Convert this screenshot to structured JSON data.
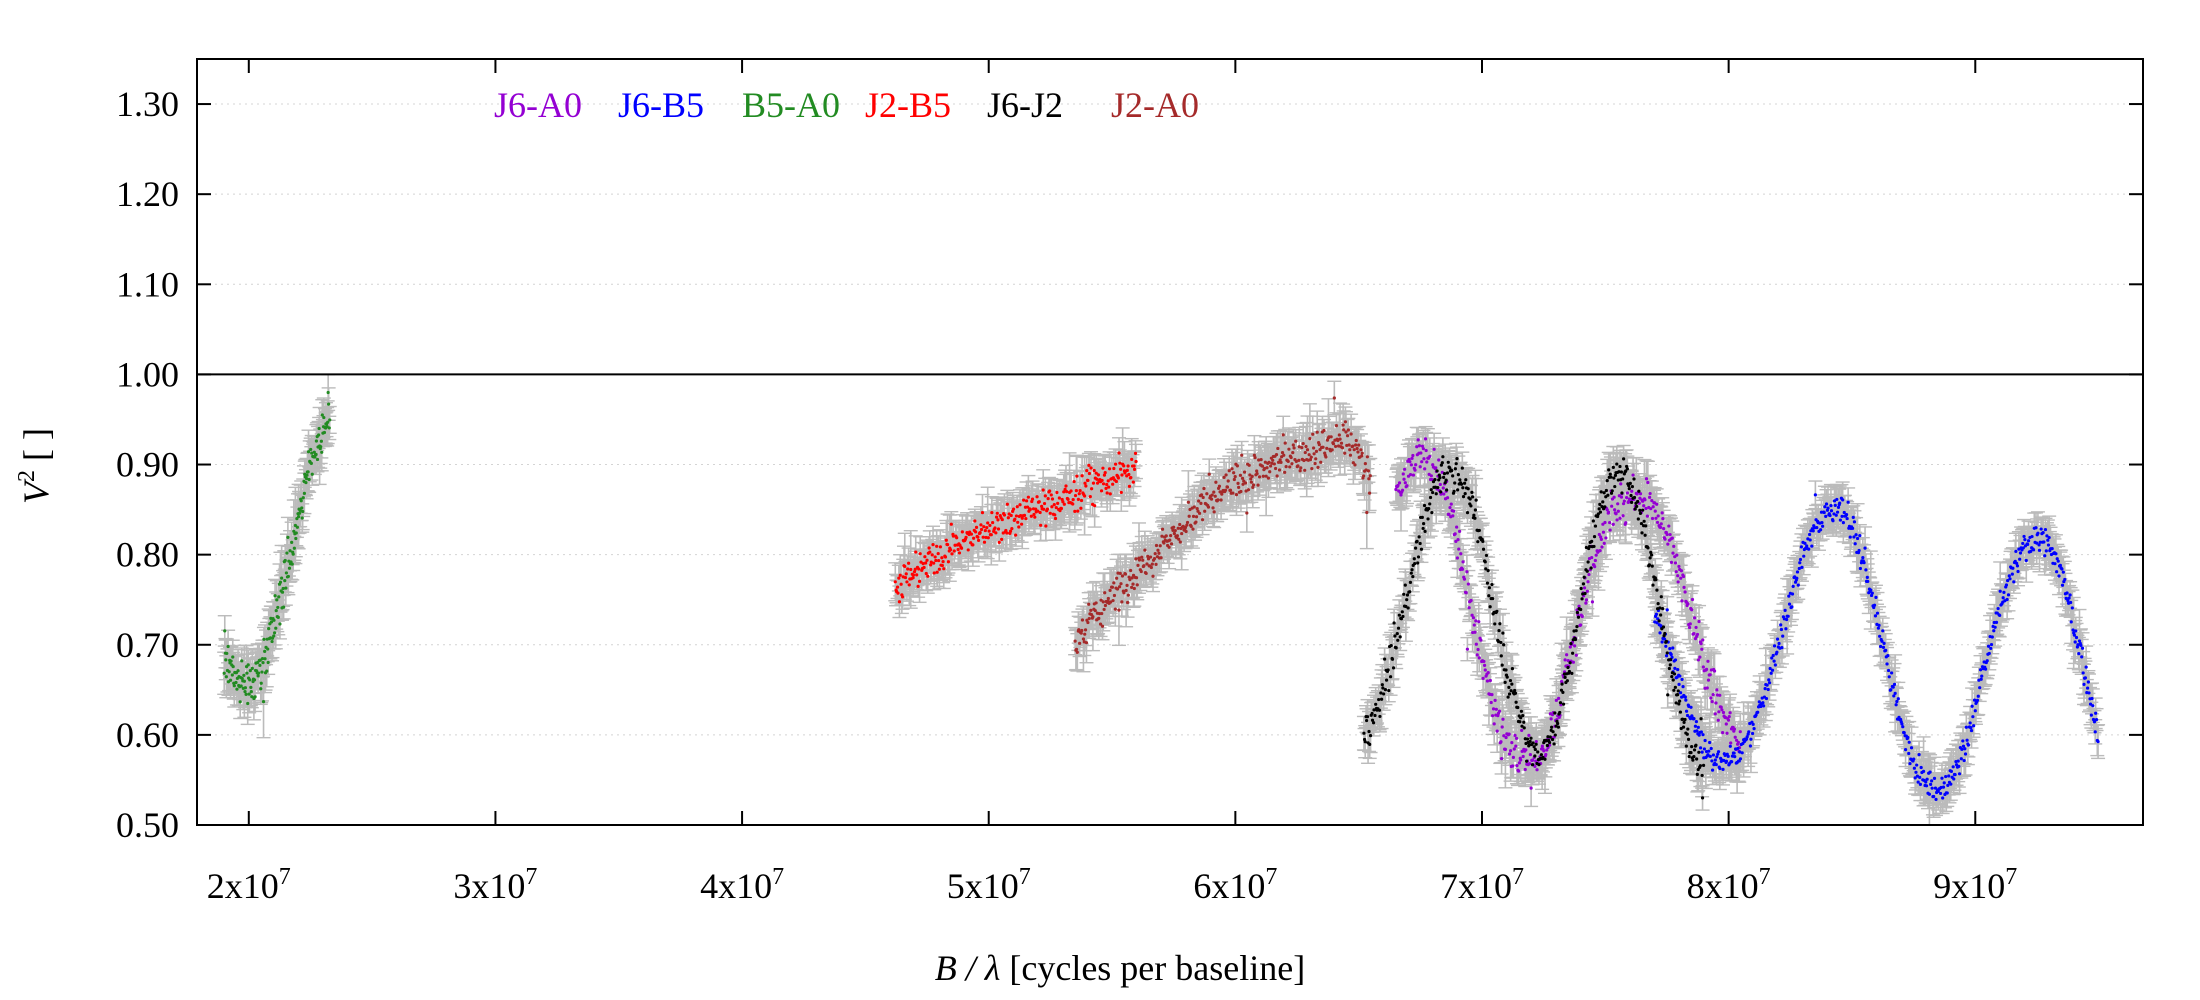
{
  "chart_data": {
    "type": "scatter",
    "title": "",
    "xlabel_main": "B / λ",
    "xlabel_unit": " [cycles per baseline]",
    "ylabel_main": "V",
    "ylabel_sup": "2",
    "ylabel_unit": " [ ]",
    "xlim": [
      17900000,
      96800000
    ],
    "ylim": [
      0.5,
      1.35
    ],
    "x_ticks": [
      {
        "value": 20000000,
        "mantissa": "2x10",
        "exp": "7"
      },
      {
        "value": 30000000,
        "mantissa": "3x10",
        "exp": "7"
      },
      {
        "value": 40000000,
        "mantissa": "4x10",
        "exp": "7"
      },
      {
        "value": 50000000,
        "mantissa": "5x10",
        "exp": "7"
      },
      {
        "value": 60000000,
        "mantissa": "6x10",
        "exp": "7"
      },
      {
        "value": 70000000,
        "mantissa": "7x10",
        "exp": "7"
      },
      {
        "value": 80000000,
        "mantissa": "8x10",
        "exp": "7"
      },
      {
        "value": 90000000,
        "mantissa": "9x10",
        "exp": "7"
      }
    ],
    "y_ticks": [
      {
        "value": 0.5,
        "label": "0.50"
      },
      {
        "value": 0.6,
        "label": "0.60"
      },
      {
        "value": 0.7,
        "label": "0.70"
      },
      {
        "value": 0.8,
        "label": "0.80"
      },
      {
        "value": 0.9,
        "label": "0.90"
      },
      {
        "value": 1.0,
        "label": "1.00"
      },
      {
        "value": 1.1,
        "label": "1.10"
      },
      {
        "value": 1.2,
        "label": "1.20"
      },
      {
        "value": 1.3,
        "label": "1.30"
      }
    ],
    "grid": true,
    "reference_line": {
      "y": 1.0
    },
    "legend_position": "top-left",
    "errorbar_color": "#bbbbbb",
    "series": [
      {
        "name": "J6-A0",
        "color": "#9400D3",
        "x": [
          66500000,
          67000000,
          67500000,
          68000000,
          68500000,
          69000000,
          69500000,
          70000000,
          70500000,
          71000000,
          71500000,
          72000000,
          72500000,
          73000000,
          73500000,
          74000000,
          74500000,
          75000000,
          75500000,
          76000000,
          76500000,
          77000000,
          77500000,
          78000000,
          78500000,
          79000000,
          79500000,
          80000000,
          80500000
        ],
        "y": [
          0.86,
          0.89,
          0.91,
          0.9,
          0.87,
          0.82,
          0.75,
          0.68,
          0.63,
          0.59,
          0.57,
          0.57,
          0.58,
          0.62,
          0.68,
          0.74,
          0.79,
          0.83,
          0.85,
          0.86,
          0.86,
          0.85,
          0.82,
          0.78,
          0.73,
          0.68,
          0.64,
          0.61,
          0.59
        ],
        "noise": 0.022
      },
      {
        "name": "J6-B5",
        "color": "#0000FF",
        "x": [
          77000000,
          77500000,
          78000000,
          78500000,
          79000000,
          79500000,
          80000000,
          80500000,
          81000000,
          81500000,
          82000000,
          82500000,
          83000000,
          83500000,
          84000000,
          84500000,
          85000000,
          85500000,
          86000000,
          86500000,
          87000000,
          87500000,
          88000000,
          88500000,
          89000000,
          89500000,
          90000000,
          90500000,
          91000000,
          91500000,
          92000000,
          92500000,
          93000000,
          93500000,
          94000000,
          94500000,
          95000000
        ],
        "y": [
          0.74,
          0.7,
          0.66,
          0.62,
          0.59,
          0.57,
          0.57,
          0.58,
          0.61,
          0.65,
          0.7,
          0.75,
          0.8,
          0.83,
          0.85,
          0.85,
          0.83,
          0.79,
          0.73,
          0.67,
          0.61,
          0.57,
          0.55,
          0.54,
          0.55,
          0.58,
          0.63,
          0.69,
          0.74,
          0.78,
          0.81,
          0.82,
          0.81,
          0.78,
          0.72,
          0.66,
          0.6
        ],
        "noise": 0.015
      },
      {
        "name": "B5-A0",
        "color": "#228B22",
        "x": [
          19000000,
          19500000,
          20000000,
          20500000,
          21000000,
          21500000,
          22000000,
          22500000,
          23000000,
          23300000
        ],
        "y": [
          0.69,
          0.665,
          0.655,
          0.67,
          0.72,
          0.78,
          0.84,
          0.9,
          0.94,
          0.96
        ],
        "noise": 0.025
      },
      {
        "name": "J2-B5",
        "color": "#FF0000",
        "x": [
          46200000,
          47000000,
          48000000,
          49000000,
          50000000,
          51000000,
          52000000,
          53000000,
          54000000,
          55000000,
          56000000
        ],
        "y": [
          0.76,
          0.78,
          0.8,
          0.815,
          0.83,
          0.84,
          0.85,
          0.86,
          0.875,
          0.885,
          0.895
        ],
        "noise": 0.02
      },
      {
        "name": "J6-J2",
        "color": "#000000",
        "x": [
          65200000,
          65800000,
          66400000,
          67000000,
          67500000,
          68000000,
          68500000,
          69000000,
          69500000,
          70000000,
          70500000,
          71000000,
          71500000,
          72000000,
          72500000,
          73000000,
          73500000,
          74000000,
          74500000,
          75000000,
          75500000,
          76000000,
          76500000,
          77000000,
          77500000,
          78000000,
          78500000,
          79000000
        ],
        "y": [
          0.6,
          0.63,
          0.69,
          0.76,
          0.82,
          0.87,
          0.895,
          0.89,
          0.86,
          0.81,
          0.74,
          0.67,
          0.62,
          0.585,
          0.58,
          0.61,
          0.67,
          0.75,
          0.82,
          0.87,
          0.89,
          0.88,
          0.84,
          0.77,
          0.7,
          0.63,
          0.58,
          0.555
        ],
        "noise": 0.02
      },
      {
        "name": "J2-A0",
        "color": "#A52A2A",
        "x": [
          53500000,
          54000000,
          54500000,
          55000000,
          56000000,
          57000000,
          58000000,
          59000000,
          60000000,
          61000000,
          62000000,
          63000000,
          64000000,
          64500000,
          65000000,
          65500000
        ],
        "y": [
          0.7,
          0.72,
          0.74,
          0.755,
          0.78,
          0.81,
          0.835,
          0.86,
          0.88,
          0.895,
          0.905,
          0.915,
          0.925,
          0.93,
          0.91,
          0.88
        ],
        "noise": 0.02
      }
    ]
  }
}
